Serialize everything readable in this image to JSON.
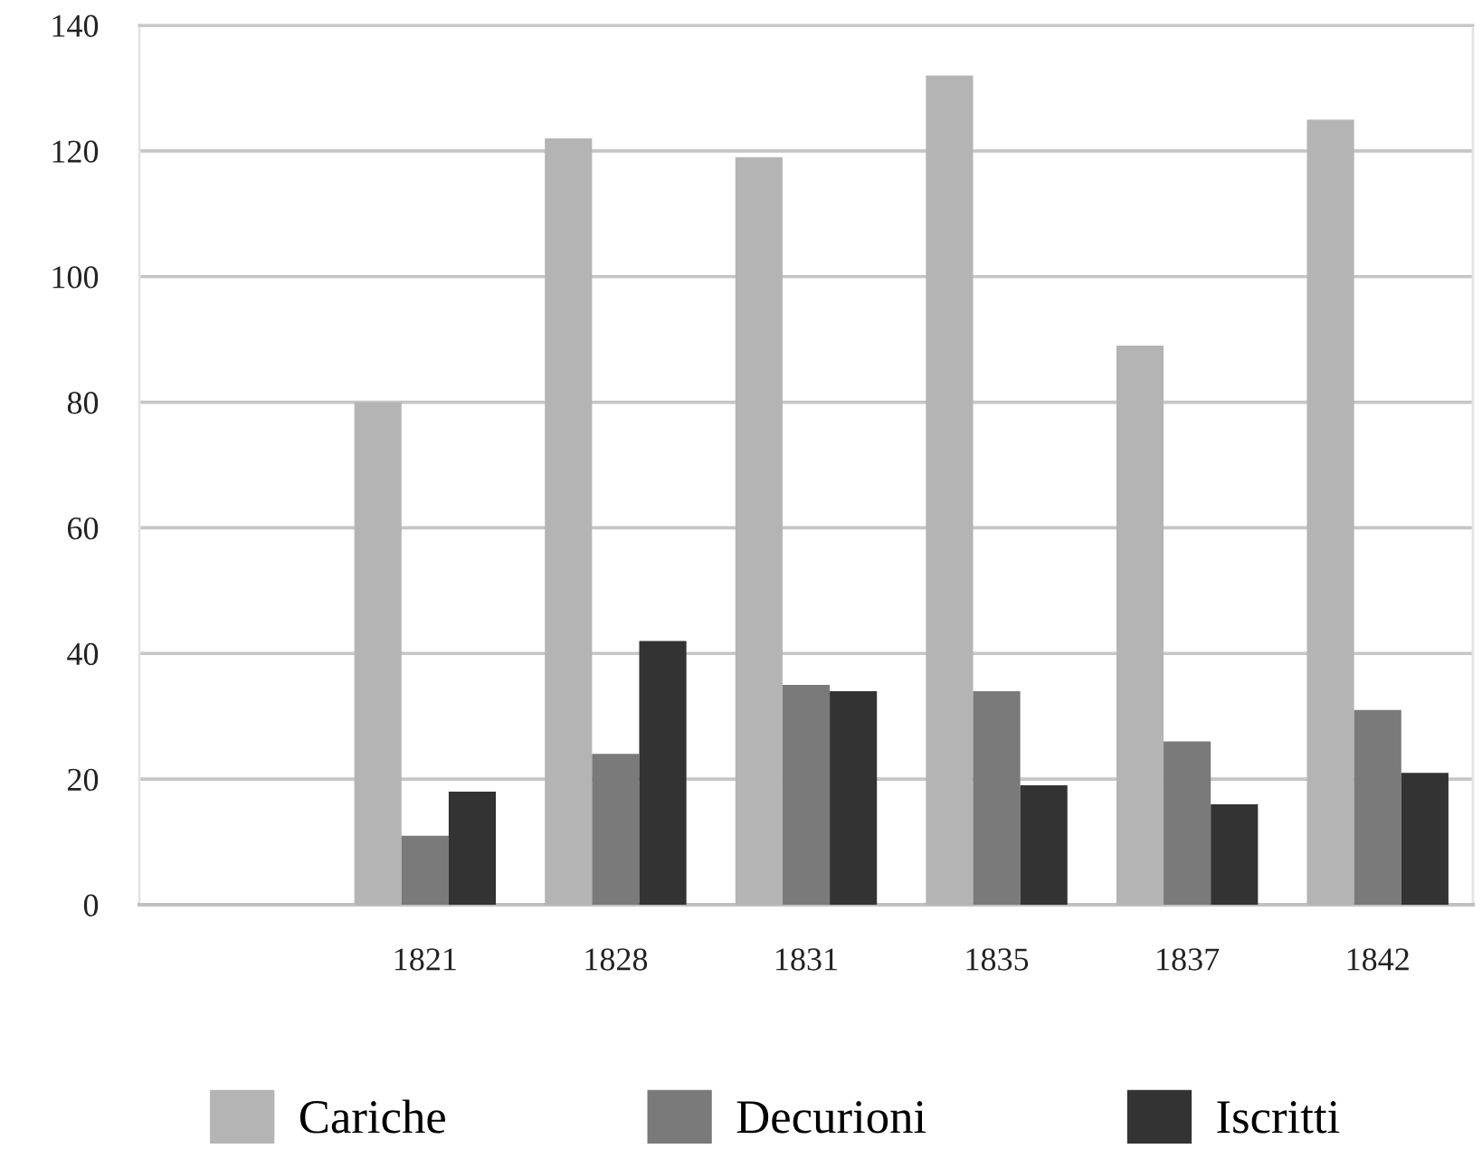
{
  "chart_data": {
    "type": "bar",
    "categories": [
      null,
      "1821",
      "1828",
      "1831",
      "1835",
      "1837",
      "1842"
    ],
    "series": [
      {
        "name": "Cariche",
        "color": "#b4b4b4",
        "values": [
          null,
          80,
          122,
          119,
          132,
          89,
          125
        ]
      },
      {
        "name": "Decurioni",
        "color": "#7a7a7a",
        "values": [
          null,
          11,
          24,
          35,
          34,
          26,
          31
        ]
      },
      {
        "name": "Iscritti",
        "color": "#333333",
        "values": [
          null,
          18,
          42,
          34,
          19,
          16,
          21
        ]
      }
    ],
    "ylim": [
      0,
      140
    ],
    "yticks": [
      0,
      20,
      40,
      60,
      80,
      100,
      120,
      140
    ],
    "grid": "y",
    "legend": "bottom"
  }
}
